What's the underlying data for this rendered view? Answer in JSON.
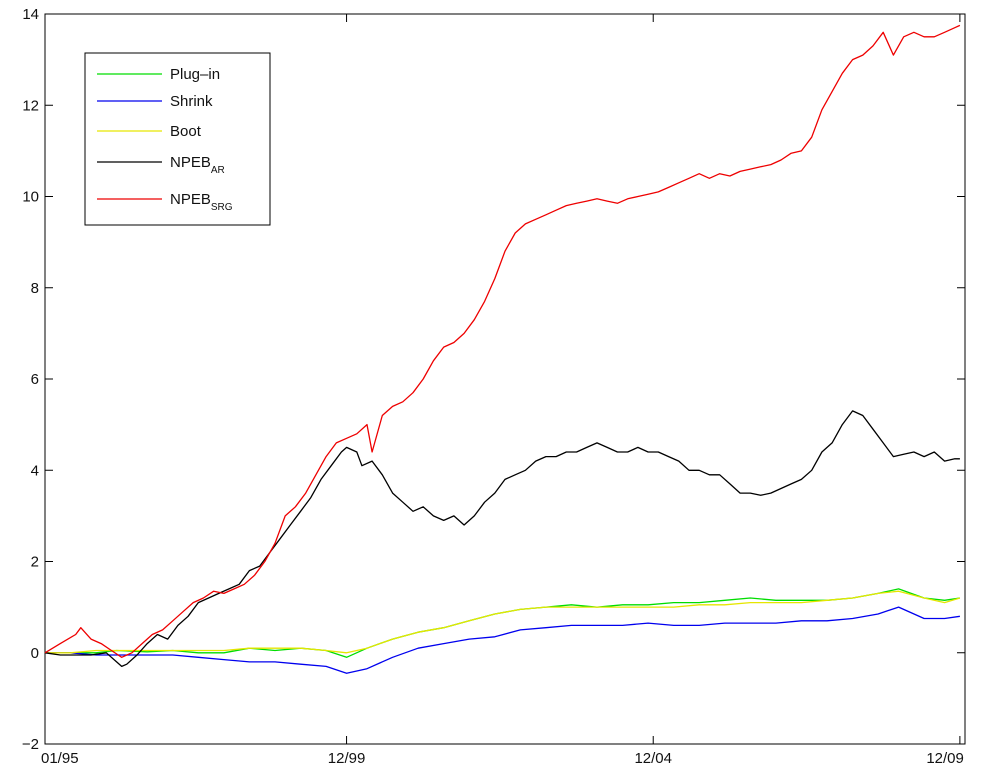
{
  "chart_data": {
    "type": "line",
    "title": "",
    "xlabel": "",
    "ylabel": "",
    "xlim": [
      0,
      180
    ],
    "ylim": [
      -2,
      14
    ],
    "x_ticks": [
      {
        "x": 0,
        "label": "01/95"
      },
      {
        "x": 59,
        "label": "12/99"
      },
      {
        "x": 119,
        "label": "12/04"
      },
      {
        "x": 179,
        "label": "12/09"
      }
    ],
    "y_ticks": [
      -2,
      0,
      2,
      4,
      6,
      8,
      10,
      12,
      14
    ],
    "y_tick_labels": [
      "−2",
      "0",
      "2",
      "4",
      "6",
      "8",
      "10",
      "12",
      "14"
    ],
    "grid": false,
    "legend_position": "top-left",
    "series": [
      {
        "name": "Plug–in",
        "name_sub": "",
        "color": "#00dd00",
        "points": [
          [
            0,
            0
          ],
          [
            5,
            0
          ],
          [
            10,
            0
          ],
          [
            14,
            0.05
          ],
          [
            20,
            0.02
          ],
          [
            25,
            0.05
          ],
          [
            30,
            0
          ],
          [
            35,
            0
          ],
          [
            40,
            0.1
          ],
          [
            45,
            0.05
          ],
          [
            50,
            0.1
          ],
          [
            55,
            0.05
          ],
          [
            59,
            -0.1
          ],
          [
            63,
            0.1
          ],
          [
            68,
            0.3
          ],
          [
            73,
            0.45
          ],
          [
            78,
            0.55
          ],
          [
            83,
            0.7
          ],
          [
            88,
            0.85
          ],
          [
            93,
            0.95
          ],
          [
            98,
            1.0
          ],
          [
            103,
            1.05
          ],
          [
            108,
            1.0
          ],
          [
            113,
            1.05
          ],
          [
            118,
            1.05
          ],
          [
            123,
            1.1
          ],
          [
            128,
            1.1
          ],
          [
            133,
            1.15
          ],
          [
            138,
            1.2
          ],
          [
            143,
            1.15
          ],
          [
            148,
            1.15
          ],
          [
            153,
            1.15
          ],
          [
            158,
            1.2
          ],
          [
            163,
            1.3
          ],
          [
            167,
            1.4
          ],
          [
            172,
            1.2
          ],
          [
            176,
            1.15
          ],
          [
            179,
            1.2
          ]
        ]
      },
      {
        "name": "Shrink",
        "name_sub": "",
        "color": "#0000ee",
        "points": [
          [
            0,
            0
          ],
          [
            5,
            0
          ],
          [
            10,
            -0.05
          ],
          [
            15,
            -0.05
          ],
          [
            20,
            -0.05
          ],
          [
            25,
            -0.05
          ],
          [
            30,
            -0.1
          ],
          [
            35,
            -0.15
          ],
          [
            40,
            -0.2
          ],
          [
            45,
            -0.2
          ],
          [
            50,
            -0.25
          ],
          [
            55,
            -0.3
          ],
          [
            59,
            -0.45
          ],
          [
            63,
            -0.35
          ],
          [
            68,
            -0.1
          ],
          [
            73,
            0.1
          ],
          [
            78,
            0.2
          ],
          [
            83,
            0.3
          ],
          [
            88,
            0.35
          ],
          [
            93,
            0.5
          ],
          [
            98,
            0.55
          ],
          [
            103,
            0.6
          ],
          [
            108,
            0.6
          ],
          [
            113,
            0.6
          ],
          [
            118,
            0.65
          ],
          [
            123,
            0.6
          ],
          [
            128,
            0.6
          ],
          [
            133,
            0.65
          ],
          [
            138,
            0.65
          ],
          [
            143,
            0.65
          ],
          [
            148,
            0.7
          ],
          [
            153,
            0.7
          ],
          [
            158,
            0.75
          ],
          [
            163,
            0.85
          ],
          [
            167,
            1.0
          ],
          [
            172,
            0.75
          ],
          [
            176,
            0.75
          ],
          [
            179,
            0.8
          ]
        ]
      },
      {
        "name": "Boot",
        "name_sub": "",
        "color": "#e6e600",
        "points": [
          [
            0,
            0
          ],
          [
            5,
            0
          ],
          [
            10,
            0.05
          ],
          [
            15,
            0.05
          ],
          [
            20,
            0.05
          ],
          [
            25,
            0.05
          ],
          [
            30,
            0.05
          ],
          [
            35,
            0.05
          ],
          [
            40,
            0.1
          ],
          [
            45,
            0.1
          ],
          [
            50,
            0.1
          ],
          [
            55,
            0.05
          ],
          [
            59,
            0.0
          ],
          [
            63,
            0.1
          ],
          [
            68,
            0.3
          ],
          [
            73,
            0.45
          ],
          [
            78,
            0.55
          ],
          [
            83,
            0.7
          ],
          [
            88,
            0.85
          ],
          [
            93,
            0.95
          ],
          [
            98,
            1.0
          ],
          [
            103,
            1.0
          ],
          [
            108,
            1.0
          ],
          [
            113,
            1.0
          ],
          [
            118,
            1.0
          ],
          [
            123,
            1.0
          ],
          [
            128,
            1.05
          ],
          [
            133,
            1.05
          ],
          [
            138,
            1.1
          ],
          [
            143,
            1.1
          ],
          [
            148,
            1.1
          ],
          [
            153,
            1.15
          ],
          [
            158,
            1.2
          ],
          [
            163,
            1.3
          ],
          [
            167,
            1.35
          ],
          [
            172,
            1.2
          ],
          [
            176,
            1.1
          ],
          [
            179,
            1.2
          ]
        ]
      },
      {
        "name": "NPEB",
        "name_sub": "AR",
        "color": "#000000",
        "points": [
          [
            0,
            0
          ],
          [
            3,
            -0.05
          ],
          [
            6,
            -0.05
          ],
          [
            9,
            -0.05
          ],
          [
            12,
            0
          ],
          [
            14,
            -0.2
          ],
          [
            15,
            -0.3
          ],
          [
            16,
            -0.25
          ],
          [
            18,
            -0.05
          ],
          [
            20,
            0.2
          ],
          [
            22,
            0.4
          ],
          [
            24,
            0.3
          ],
          [
            26,
            0.6
          ],
          [
            28,
            0.8
          ],
          [
            30,
            1.1
          ],
          [
            32,
            1.2
          ],
          [
            34,
            1.3
          ],
          [
            36,
            1.4
          ],
          [
            38,
            1.5
          ],
          [
            40,
            1.8
          ],
          [
            42,
            1.9
          ],
          [
            44,
            2.2
          ],
          [
            46,
            2.5
          ],
          [
            48,
            2.8
          ],
          [
            50,
            3.1
          ],
          [
            52,
            3.4
          ],
          [
            54,
            3.8
          ],
          [
            56,
            4.1
          ],
          [
            58,
            4.4
          ],
          [
            59,
            4.5
          ],
          [
            61,
            4.4
          ],
          [
            62,
            4.1
          ],
          [
            64,
            4.2
          ],
          [
            66,
            3.9
          ],
          [
            68,
            3.5
          ],
          [
            70,
            3.3
          ],
          [
            72,
            3.1
          ],
          [
            74,
            3.2
          ],
          [
            76,
            3.0
          ],
          [
            78,
            2.9
          ],
          [
            80,
            3.0
          ],
          [
            82,
            2.8
          ],
          [
            84,
            3.0
          ],
          [
            86,
            3.3
          ],
          [
            88,
            3.5
          ],
          [
            90,
            3.8
          ],
          [
            92,
            3.9
          ],
          [
            94,
            4.0
          ],
          [
            96,
            4.2
          ],
          [
            98,
            4.3
          ],
          [
            100,
            4.3
          ],
          [
            102,
            4.4
          ],
          [
            104,
            4.4
          ],
          [
            106,
            4.5
          ],
          [
            108,
            4.6
          ],
          [
            110,
            4.5
          ],
          [
            112,
            4.4
          ],
          [
            114,
            4.4
          ],
          [
            116,
            4.5
          ],
          [
            118,
            4.4
          ],
          [
            120,
            4.4
          ],
          [
            122,
            4.3
          ],
          [
            124,
            4.2
          ],
          [
            126,
            4.0
          ],
          [
            128,
            4.0
          ],
          [
            130,
            3.9
          ],
          [
            132,
            3.9
          ],
          [
            134,
            3.7
          ],
          [
            136,
            3.5
          ],
          [
            138,
            3.5
          ],
          [
            140,
            3.45
          ],
          [
            142,
            3.5
          ],
          [
            144,
            3.6
          ],
          [
            146,
            3.7
          ],
          [
            148,
            3.8
          ],
          [
            150,
            4.0
          ],
          [
            152,
            4.4
          ],
          [
            154,
            4.6
          ],
          [
            156,
            5.0
          ],
          [
            158,
            5.3
          ],
          [
            160,
            5.2
          ],
          [
            162,
            4.9
          ],
          [
            164,
            4.6
          ],
          [
            166,
            4.3
          ],
          [
            168,
            4.35
          ],
          [
            170,
            4.4
          ],
          [
            172,
            4.3
          ],
          [
            174,
            4.4
          ],
          [
            176,
            4.2
          ],
          [
            178,
            4.25
          ],
          [
            179,
            4.25
          ]
        ]
      },
      {
        "name": "NPEB",
        "name_sub": "SRG",
        "color": "#ee0000",
        "points": [
          [
            0,
            0
          ],
          [
            3,
            0.2
          ],
          [
            6,
            0.4
          ],
          [
            7,
            0.55
          ],
          [
            9,
            0.3
          ],
          [
            11,
            0.2
          ],
          [
            13,
            0.05
          ],
          [
            15,
            -0.1
          ],
          [
            17,
            0
          ],
          [
            19,
            0.2
          ],
          [
            21,
            0.4
          ],
          [
            23,
            0.5
          ],
          [
            25,
            0.7
          ],
          [
            27,
            0.9
          ],
          [
            29,
            1.1
          ],
          [
            31,
            1.2
          ],
          [
            33,
            1.35
          ],
          [
            35,
            1.3
          ],
          [
            37,
            1.4
          ],
          [
            39,
            1.5
          ],
          [
            41,
            1.7
          ],
          [
            43,
            2.0
          ],
          [
            45,
            2.4
          ],
          [
            47,
            3.0
          ],
          [
            49,
            3.2
          ],
          [
            51,
            3.5
          ],
          [
            53,
            3.9
          ],
          [
            55,
            4.3
          ],
          [
            57,
            4.6
          ],
          [
            59,
            4.7
          ],
          [
            61,
            4.8
          ],
          [
            63,
            5.0
          ],
          [
            64,
            4.4
          ],
          [
            66,
            5.2
          ],
          [
            68,
            5.4
          ],
          [
            70,
            5.5
          ],
          [
            72,
            5.7
          ],
          [
            74,
            6.0
          ],
          [
            76,
            6.4
          ],
          [
            78,
            6.7
          ],
          [
            80,
            6.8
          ],
          [
            82,
            7.0
          ],
          [
            84,
            7.3
          ],
          [
            86,
            7.7
          ],
          [
            88,
            8.2
          ],
          [
            90,
            8.8
          ],
          [
            92,
            9.2
          ],
          [
            94,
            9.4
          ],
          [
            96,
            9.5
          ],
          [
            98,
            9.6
          ],
          [
            100,
            9.7
          ],
          [
            102,
            9.8
          ],
          [
            104,
            9.85
          ],
          [
            106,
            9.9
          ],
          [
            108,
            9.95
          ],
          [
            110,
            9.9
          ],
          [
            112,
            9.85
          ],
          [
            114,
            9.95
          ],
          [
            116,
            10.0
          ],
          [
            118,
            10.05
          ],
          [
            120,
            10.1
          ],
          [
            122,
            10.2
          ],
          [
            124,
            10.3
          ],
          [
            126,
            10.4
          ],
          [
            128,
            10.5
          ],
          [
            130,
            10.4
          ],
          [
            132,
            10.5
          ],
          [
            134,
            10.45
          ],
          [
            136,
            10.55
          ],
          [
            138,
            10.6
          ],
          [
            140,
            10.65
          ],
          [
            142,
            10.7
          ],
          [
            144,
            10.8
          ],
          [
            146,
            10.95
          ],
          [
            148,
            11.0
          ],
          [
            150,
            11.3
          ],
          [
            152,
            11.9
          ],
          [
            154,
            12.3
          ],
          [
            156,
            12.7
          ],
          [
            158,
            13.0
          ],
          [
            160,
            13.1
          ],
          [
            162,
            13.3
          ],
          [
            164,
            13.6
          ],
          [
            166,
            13.1
          ],
          [
            168,
            13.5
          ],
          [
            170,
            13.6
          ],
          [
            172,
            13.5
          ],
          [
            174,
            13.5
          ],
          [
            176,
            13.6
          ],
          [
            178,
            13.7
          ],
          [
            179,
            13.75
          ]
        ]
      }
    ]
  }
}
